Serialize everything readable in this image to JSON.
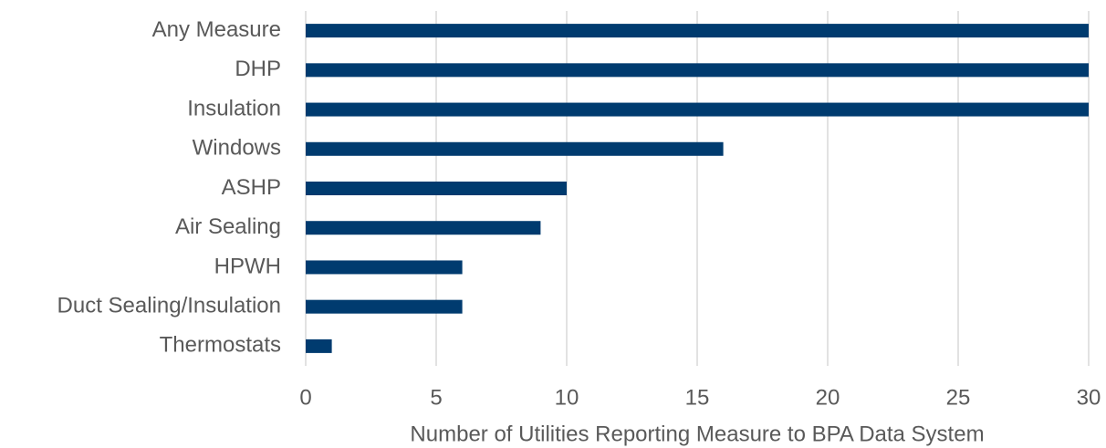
{
  "chart_data": {
    "type": "hbar",
    "categories": [
      "Any Measure",
      "DHP",
      "Insulation",
      "Windows",
      "ASHP",
      "Air Sealing",
      "HPWH",
      "Duct Sealing/Insulation",
      "Thermostats"
    ],
    "values": [
      30,
      30,
      30,
      16,
      10,
      9,
      6,
      6,
      1
    ],
    "color": "#003b6f",
    "xlabel": "Number of Utilities Reporting Measure to BPA Data System",
    "xlim": [
      0,
      30
    ],
    "xticks": [
      0,
      5,
      10,
      15,
      20,
      25,
      30
    ],
    "grid": true
  }
}
